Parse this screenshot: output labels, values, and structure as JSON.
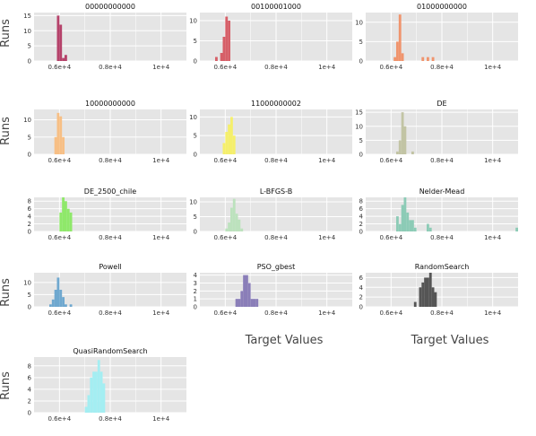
{
  "figure": {
    "y_axis_title": "Runs",
    "x_axis_title": "Target Values"
  },
  "colors": {
    "panel_bg": "#e5e5e5",
    "gridline": "#ffffff",
    "axis_text": "#333333"
  },
  "chart_data": [
    {
      "type": "bar",
      "title": "00000000000",
      "color": "#b5426a",
      "xlim": [
        5000,
        11000
      ],
      "ylim": [
        0,
        16
      ],
      "x_ticks": [
        6000,
        8000,
        10000
      ],
      "x_tick_labels": [
        "0.6e+4",
        "0.8e+4",
        "1e+4"
      ],
      "y_ticks": [
        0,
        5,
        10,
        15
      ],
      "bins": [
        {
          "x0": 5900,
          "x1": 6000,
          "count": 15
        },
        {
          "x0": 6000,
          "x1": 6100,
          "count": 12
        },
        {
          "x0": 6100,
          "x1": 6200,
          "count": 1
        },
        {
          "x0": 6200,
          "x1": 6300,
          "count": 2
        }
      ]
    },
    {
      "type": "bar",
      "title": "00100001000",
      "color": "#d65f68",
      "xlim": [
        5000,
        11000
      ],
      "ylim": [
        0,
        12
      ],
      "x_ticks": [
        6000,
        8000,
        10000
      ],
      "x_tick_labels": [
        "0.6e+4",
        "0.8e+4",
        "1e+4"
      ],
      "y_ticks": [
        0,
        5,
        10
      ],
      "bins": [
        {
          "x0": 5600,
          "x1": 5700,
          "count": 1
        },
        {
          "x0": 5700,
          "x1": 5800,
          "count": 0
        },
        {
          "x0": 5800,
          "x1": 5900,
          "count": 2
        },
        {
          "x0": 5900,
          "x1": 6000,
          "count": 6
        },
        {
          "x0": 6000,
          "x1": 6100,
          "count": 11
        },
        {
          "x0": 6100,
          "x1": 6200,
          "count": 10
        }
      ]
    },
    {
      "type": "bar",
      "title": "01000000000",
      "color": "#f0946d",
      "xlim": [
        5000,
        11000
      ],
      "ylim": [
        0,
        12.5
      ],
      "x_ticks": [
        6000,
        8000,
        10000
      ],
      "x_tick_labels": [
        "0.6e+4",
        "0.8e+4",
        "1e+4"
      ],
      "y_ticks": [
        0,
        5,
        10
      ],
      "bins": [
        {
          "x0": 6100,
          "x1": 6200,
          "count": 1
        },
        {
          "x0": 6200,
          "x1": 6300,
          "count": 5
        },
        {
          "x0": 6300,
          "x1": 6400,
          "count": 12
        },
        {
          "x0": 6400,
          "x1": 6500,
          "count": 2
        },
        {
          "x0": 7200,
          "x1": 7300,
          "count": 1
        },
        {
          "x0": 7400,
          "x1": 7500,
          "count": 1
        },
        {
          "x0": 7600,
          "x1": 7700,
          "count": 1
        }
      ]
    },
    {
      "type": "bar",
      "title": "10000000000",
      "color": "#f7bf85",
      "xlim": [
        5000,
        11000
      ],
      "ylim": [
        0,
        13
      ],
      "x_ticks": [
        6000,
        8000,
        10000
      ],
      "x_tick_labels": [
        "0.6e+4",
        "0.8e+4",
        "1e+4"
      ],
      "y_ticks": [
        0,
        5,
        10
      ],
      "bins": [
        {
          "x0": 5800,
          "x1": 5900,
          "count": 5
        },
        {
          "x0": 5900,
          "x1": 6000,
          "count": 12
        },
        {
          "x0": 6000,
          "x1": 6100,
          "count": 11
        },
        {
          "x0": 6100,
          "x1": 6200,
          "count": 5
        }
      ]
    },
    {
      "type": "bar",
      "title": "11000000002",
      "color": "#f5ef6b",
      "xlim": [
        5000,
        11000
      ],
      "ylim": [
        0,
        12
      ],
      "x_ticks": [
        6000,
        8000,
        10000
      ],
      "x_tick_labels": [
        "0.6e+4",
        "0.8e+4",
        "1e+4"
      ],
      "y_ticks": [
        0,
        5,
        10
      ],
      "bins": [
        {
          "x0": 5900,
          "x1": 6000,
          "count": 3
        },
        {
          "x0": 6000,
          "x1": 6100,
          "count": 6
        },
        {
          "x0": 6100,
          "x1": 6200,
          "count": 8
        },
        {
          "x0": 6200,
          "x1": 6300,
          "count": 10
        },
        {
          "x0": 6300,
          "x1": 6400,
          "count": 5
        }
      ]
    },
    {
      "type": "bar",
      "title": "DE",
      "color": "#c2c4a4",
      "xlim": [
        5000,
        11000
      ],
      "ylim": [
        0,
        16
      ],
      "x_ticks": [
        6000,
        8000,
        10000
      ],
      "x_tick_labels": [
        "0.6e+4",
        "0.8e+4",
        "1e+4"
      ],
      "y_ticks": [
        0,
        5,
        10,
        15
      ],
      "bins": [
        {
          "x0": 6200,
          "x1": 6300,
          "count": 1
        },
        {
          "x0": 6300,
          "x1": 6400,
          "count": 5
        },
        {
          "x0": 6400,
          "x1": 6500,
          "count": 15
        },
        {
          "x0": 6500,
          "x1": 6600,
          "count": 10
        },
        {
          "x0": 6600,
          "x1": 6700,
          "count": 0
        },
        {
          "x0": 6700,
          "x1": 6800,
          "count": 0
        },
        {
          "x0": 6800,
          "x1": 6900,
          "count": 1
        }
      ]
    },
    {
      "type": "bar",
      "title": "DE_2500_chile",
      "color": "#8fe86a",
      "xlim": [
        5000,
        11000
      ],
      "ylim": [
        0,
        9
      ],
      "x_ticks": [
        6000,
        8000,
        10000
      ],
      "x_tick_labels": [
        "0.6e+4",
        "0.8e+4",
        "1e+4"
      ],
      "y_ticks": [
        0,
        2,
        4,
        6,
        8
      ],
      "bins": [
        {
          "x0": 6000,
          "x1": 6100,
          "count": 5
        },
        {
          "x0": 6100,
          "x1": 6200,
          "count": 9
        },
        {
          "x0": 6200,
          "x1": 6300,
          "count": 8
        },
        {
          "x0": 6300,
          "x1": 6400,
          "count": 6
        },
        {
          "x0": 6400,
          "x1": 6500,
          "count": 5
        }
      ]
    },
    {
      "type": "bar",
      "title": "L-BFGS-B",
      "color": "#bce2bd",
      "xlim": [
        5000,
        11000
      ],
      "ylim": [
        0,
        11.5
      ],
      "x_ticks": [
        6000,
        8000,
        10000
      ],
      "x_tick_labels": [
        "0.6e+4",
        "0.8e+4",
        "1e+4"
      ],
      "y_ticks": [
        0,
        5,
        10
      ],
      "bins": [
        {
          "x0": 6000,
          "x1": 6100,
          "count": 1
        },
        {
          "x0": 6100,
          "x1": 6200,
          "count": 3
        },
        {
          "x0": 6200,
          "x1": 6300,
          "count": 8
        },
        {
          "x0": 6300,
          "x1": 6400,
          "count": 11
        },
        {
          "x0": 6400,
          "x1": 6500,
          "count": 6
        },
        {
          "x0": 6500,
          "x1": 6600,
          "count": 4
        },
        {
          "x0": 6600,
          "x1": 6700,
          "count": 1
        }
      ]
    },
    {
      "type": "bar",
      "title": "Nelder-Mead",
      "color": "#8ccbb6",
      "xlim": [
        5000,
        11000
      ],
      "ylim": [
        0,
        9
      ],
      "x_ticks": [
        6000,
        8000,
        10000
      ],
      "x_tick_labels": [
        "0.6e+4",
        "0.8e+4",
        "1e+4"
      ],
      "y_ticks": [
        0,
        2,
        4,
        6,
        8
      ],
      "bins": [
        {
          "x0": 6200,
          "x1": 6300,
          "count": 4
        },
        {
          "x0": 6300,
          "x1": 6400,
          "count": 2
        },
        {
          "x0": 6400,
          "x1": 6500,
          "count": 7
        },
        {
          "x0": 6500,
          "x1": 6600,
          "count": 9
        },
        {
          "x0": 6600,
          "x1": 6700,
          "count": 5
        },
        {
          "x0": 6700,
          "x1": 6800,
          "count": 3
        },
        {
          "x0": 6800,
          "x1": 6900,
          "count": 3
        },
        {
          "x0": 6900,
          "x1": 7000,
          "count": 1
        },
        {
          "x0": 7400,
          "x1": 7500,
          "count": 2
        },
        {
          "x0": 7500,
          "x1": 7600,
          "count": 1
        },
        {
          "x0": 10900,
          "x1": 11000,
          "count": 1
        }
      ]
    },
    {
      "type": "bar",
      "title": "Powell",
      "color": "#6fa8cf",
      "xlim": [
        5000,
        11000
      ],
      "ylim": [
        0,
        14
      ],
      "x_ticks": [
        6000,
        8000,
        10000
      ],
      "x_tick_labels": [
        "0.6e+4",
        "0.8e+4",
        "1e+4"
      ],
      "y_ticks": [
        0,
        5,
        10
      ],
      "bins": [
        {
          "x0": 5600,
          "x1": 5700,
          "count": 1
        },
        {
          "x0": 5700,
          "x1": 5800,
          "count": 3
        },
        {
          "x0": 5800,
          "x1": 5900,
          "count": 7
        },
        {
          "x0": 5900,
          "x1": 6000,
          "count": 12
        },
        {
          "x0": 6000,
          "x1": 6100,
          "count": 7
        },
        {
          "x0": 6100,
          "x1": 6200,
          "count": 4
        },
        {
          "x0": 6200,
          "x1": 6300,
          "count": 1
        },
        {
          "x0": 6300,
          "x1": 6400,
          "count": 0
        },
        {
          "x0": 6400,
          "x1": 6500,
          "count": 1
        }
      ]
    },
    {
      "type": "bar",
      "title": "PSO_gbest",
      "color": "#8a7eb8",
      "xlim": [
        5000,
        11000
      ],
      "ylim": [
        0,
        4.3
      ],
      "x_ticks": [
        6000,
        8000,
        10000
      ],
      "x_tick_labels": [
        "0.6e+4",
        "0.8e+4",
        "1e+4"
      ],
      "y_ticks": [
        0,
        1,
        2,
        3,
        4
      ],
      "bins": [
        {
          "x0": 6400,
          "x1": 6500,
          "count": 1
        },
        {
          "x0": 6500,
          "x1": 6600,
          "count": 1
        },
        {
          "x0": 6600,
          "x1": 6700,
          "count": 2
        },
        {
          "x0": 6700,
          "x1": 6800,
          "count": 4
        },
        {
          "x0": 6800,
          "x1": 6900,
          "count": 4
        },
        {
          "x0": 6900,
          "x1": 7000,
          "count": 3
        },
        {
          "x0": 7000,
          "x1": 7100,
          "count": 1
        },
        {
          "x0": 7100,
          "x1": 7200,
          "count": 1
        },
        {
          "x0": 7200,
          "x1": 7300,
          "count": 1
        }
      ]
    },
    {
      "type": "bar",
      "title": "RandomSearch",
      "color": "#555555",
      "xlim": [
        5000,
        11000
      ],
      "ylim": [
        0,
        7
      ],
      "x_ticks": [
        6000,
        8000,
        10000
      ],
      "x_tick_labels": [
        "0.6e+4",
        "0.8e+4",
        "1e+4"
      ],
      "y_ticks": [
        0,
        2,
        4,
        6
      ],
      "bins": [
        {
          "x0": 6900,
          "x1": 7000,
          "count": 1
        },
        {
          "x0": 7100,
          "x1": 7200,
          "count": 4
        },
        {
          "x0": 7200,
          "x1": 7300,
          "count": 5
        },
        {
          "x0": 7300,
          "x1": 7400,
          "count": 6
        },
        {
          "x0": 7400,
          "x1": 7500,
          "count": 6
        },
        {
          "x0": 7500,
          "x1": 7600,
          "count": 7
        },
        {
          "x0": 7600,
          "x1": 7700,
          "count": 4
        },
        {
          "x0": 7700,
          "x1": 7800,
          "count": 3
        }
      ]
    },
    {
      "type": "bar",
      "title": "QuasiRandomSearch",
      "color": "#a4eef2",
      "xlim": [
        5000,
        11000
      ],
      "ylim": [
        0,
        9.5
      ],
      "x_ticks": [
        6000,
        8000,
        10000
      ],
      "x_tick_labels": [
        "0.6e+4",
        "0.8e+4",
        "1e+4"
      ],
      "y_ticks": [
        0,
        2,
        4,
        6,
        8
      ],
      "bins": [
        {
          "x0": 7000,
          "x1": 7100,
          "count": 1
        },
        {
          "x0": 7100,
          "x1": 7200,
          "count": 3
        },
        {
          "x0": 7200,
          "x1": 7300,
          "count": 6
        },
        {
          "x0": 7300,
          "x1": 7400,
          "count": 7
        },
        {
          "x0": 7400,
          "x1": 7500,
          "count": 7
        },
        {
          "x0": 7500,
          "x1": 7600,
          "count": 9
        },
        {
          "x0": 7600,
          "x1": 7700,
          "count": 7
        },
        {
          "x0": 7700,
          "x1": 7800,
          "count": 5
        }
      ]
    }
  ]
}
